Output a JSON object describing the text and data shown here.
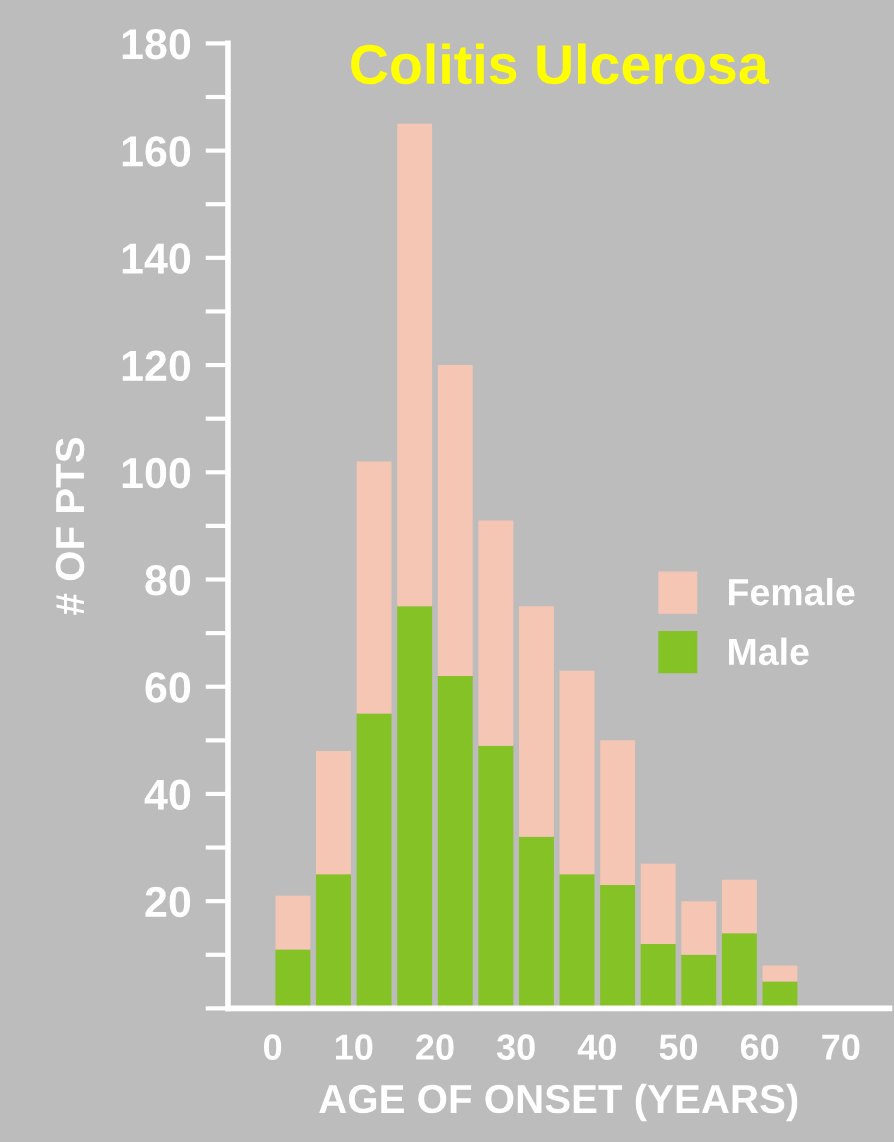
{
  "chart_data": {
    "type": "bar",
    "stacked": true,
    "title": "Colitis Ulcerosa",
    "xlabel": "AGE OF ONSET (YEARS)",
    "ylabel": "# OF PTS",
    "x": [
      2.5,
      7.5,
      12.5,
      17.5,
      22.5,
      27.5,
      32.5,
      37.5,
      42.5,
      47.5,
      52.5,
      57.5,
      62.5
    ],
    "series": [
      {
        "name": "Male",
        "color": "#84c225",
        "values": [
          11,
          25,
          55,
          75,
          62,
          49,
          32,
          25,
          23,
          12,
          10,
          14,
          5
        ]
      },
      {
        "name": "Female",
        "color": "#f5c6b4",
        "values": [
          10,
          23,
          47,
          90,
          58,
          42,
          43,
          38,
          27,
          15,
          10,
          10,
          3
        ]
      }
    ],
    "xlim": [
      -5.5,
      76
    ],
    "xticks": [
      0,
      10,
      20,
      30,
      40,
      50,
      60,
      70
    ],
    "ylim": [
      0,
      180
    ],
    "yticks": [
      20,
      40,
      60,
      80,
      100,
      120,
      140,
      160,
      180
    ],
    "grid": false,
    "legend": "right"
  }
}
